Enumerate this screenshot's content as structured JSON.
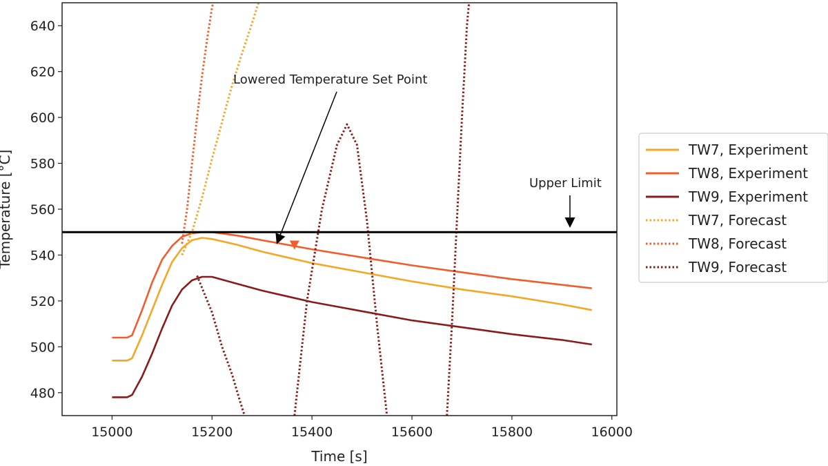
{
  "chart_data": {
    "type": "line",
    "xlabel": "Time [s]",
    "ylabel": "Temperature [°C]",
    "xlim": [
      14900,
      16010
    ],
    "ylim": [
      470,
      650
    ],
    "xticks": [
      15000,
      15200,
      15400,
      15600,
      15800,
      16000
    ],
    "yticks": [
      480,
      500,
      520,
      540,
      560,
      580,
      600,
      620,
      640
    ],
    "grid": false,
    "legend_placement": "outside-right",
    "upper_limit": {
      "y": 550,
      "label": "Upper Limit",
      "color": "#000000"
    },
    "annotations": [
      {
        "text": "Lowered Temperature Set Point",
        "x": 15360,
        "y": 545
      },
      {
        "text": "Upper Limit",
        "x": 15920,
        "y": 551
      }
    ],
    "marker": {
      "x": 15365,
      "y": 544.5,
      "shape": "triangle-down",
      "color": "#f25c2a"
    },
    "series": [
      {
        "name": "TW7, Experiment",
        "style": "solid",
        "color": "#f5a623",
        "points": [
          [
            15000,
            494
          ],
          [
            15030,
            494
          ],
          [
            15040,
            495
          ],
          [
            15060,
            505
          ],
          [
            15080,
            516
          ],
          [
            15100,
            527
          ],
          [
            15120,
            537
          ],
          [
            15140,
            543
          ],
          [
            15160,
            546.5
          ],
          [
            15180,
            547.5
          ],
          [
            15200,
            547
          ],
          [
            15250,
            544.5
          ],
          [
            15300,
            541.5
          ],
          [
            15350,
            539
          ],
          [
            15400,
            536.5
          ],
          [
            15500,
            532.5
          ],
          [
            15600,
            528.5
          ],
          [
            15700,
            525
          ],
          [
            15800,
            522
          ],
          [
            15900,
            518.5
          ],
          [
            15960,
            516
          ]
        ]
      },
      {
        "name": "TW8, Experiment",
        "style": "solid",
        "color": "#f25c2a",
        "points": [
          [
            15000,
            504
          ],
          [
            15030,
            504
          ],
          [
            15040,
            505
          ],
          [
            15060,
            516
          ],
          [
            15080,
            528
          ],
          [
            15100,
            538
          ],
          [
            15120,
            544
          ],
          [
            15140,
            548
          ],
          [
            15160,
            549.5
          ],
          [
            15180,
            550
          ],
          [
            15200,
            550
          ],
          [
            15250,
            548.5
          ],
          [
            15300,
            546.5
          ],
          [
            15350,
            544.5
          ],
          [
            15400,
            542.5
          ],
          [
            15500,
            539
          ],
          [
            15600,
            535.5
          ],
          [
            15700,
            532.5
          ],
          [
            15800,
            529.5
          ],
          [
            15900,
            527
          ],
          [
            15960,
            525.5
          ]
        ]
      },
      {
        "name": "TW9, Experiment",
        "style": "solid",
        "color": "#8b1a1a",
        "points": [
          [
            15000,
            478
          ],
          [
            15030,
            478
          ],
          [
            15040,
            479
          ],
          [
            15060,
            487
          ],
          [
            15080,
            497
          ],
          [
            15100,
            508
          ],
          [
            15120,
            518
          ],
          [
            15140,
            525
          ],
          [
            15160,
            529
          ],
          [
            15180,
            530.5
          ],
          [
            15200,
            530.5
          ],
          [
            15250,
            527.5
          ],
          [
            15300,
            524.5
          ],
          [
            15350,
            522
          ],
          [
            15400,
            519.5
          ],
          [
            15500,
            515.5
          ],
          [
            15600,
            511.5
          ],
          [
            15700,
            508.5
          ],
          [
            15800,
            505.5
          ],
          [
            15900,
            503
          ],
          [
            15960,
            501
          ]
        ]
      },
      {
        "name": "TW7, Forecast",
        "style": "dotted",
        "color": "#f5a623",
        "points": [
          [
            15140,
            540
          ],
          [
            15160,
            550
          ],
          [
            15180,
            565
          ],
          [
            15200,
            582
          ],
          [
            15220,
            598
          ],
          [
            15240,
            614
          ],
          [
            15260,
            628
          ],
          [
            15280,
            641
          ],
          [
            15290,
            648
          ],
          [
            15295,
            651
          ]
        ]
      },
      {
        "name": "TW8, Forecast",
        "style": "dotted",
        "color": "#f25c2a",
        "points": [
          [
            15140,
            545
          ],
          [
            15150,
            560
          ],
          [
            15160,
            580
          ],
          [
            15170,
            600
          ],
          [
            15180,
            618
          ],
          [
            15190,
            634
          ],
          [
            15200,
            648
          ],
          [
            15205,
            652
          ]
        ]
      },
      {
        "name": "TW9, Forecast",
        "style": "dotted",
        "color": "#8b1a1a",
        "segments": [
          [
            [
              15170,
              531
            ],
            [
              15200,
              515
            ],
            [
              15220,
              500
            ],
            [
              15240,
              488
            ],
            [
              15255,
              477
            ],
            [
              15265,
              470
            ]
          ],
          [
            [
              15365,
              470
            ],
            [
              15390,
              520
            ],
            [
              15420,
              560
            ],
            [
              15450,
              588
            ],
            [
              15470,
              597
            ],
            [
              15490,
              588
            ],
            [
              15510,
              555
            ],
            [
              15530,
              510
            ],
            [
              15550,
              470
            ]
          ],
          [
            [
              15670,
              470
            ],
            [
              15680,
              510
            ],
            [
              15690,
              555
            ],
            [
              15700,
              600
            ],
            [
              15710,
              640
            ],
            [
              15715,
              652
            ]
          ]
        ]
      }
    ]
  }
}
